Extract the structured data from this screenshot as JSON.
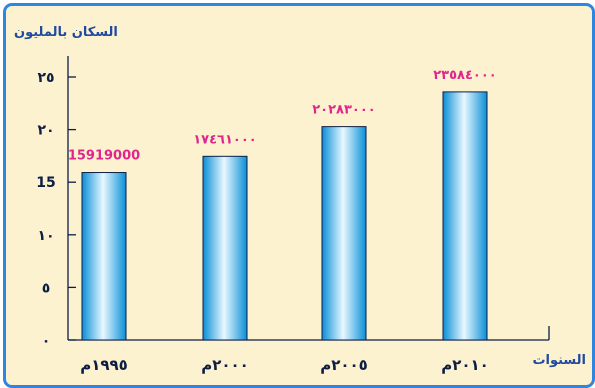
{
  "chart_data": {
    "type": "bar",
    "title": "السكان بالمليون",
    "ylabel": "السكان بالمليون",
    "xlabel": "السنوات",
    "categories": [
      "١٩٩٥م",
      "٢٠٠٠م",
      "٢٠٠٥م",
      "٢٠١٠م"
    ],
    "values": [
      15.919,
      17.461,
      20.283,
      23.584
    ],
    "data_labels": [
      "15919000",
      "١٧٤٦١٠٠٠",
      "٢٠٢٨٣٠٠٠",
      "٢٣٥٨٤٠٠٠"
    ],
    "yticks": [
      {
        "value": 0,
        "label": "٠"
      },
      {
        "value": 5,
        "label": "٥"
      },
      {
        "value": 10,
        "label": "١٠"
      },
      {
        "value": 15,
        "label": "15"
      },
      {
        "value": 20,
        "label": "٢٠"
      },
      {
        "value": 25,
        "label": "٢٥"
      }
    ],
    "ylim": [
      0,
      25
    ],
    "grid": false,
    "legend": "none",
    "colors": {
      "bar_edge": "#0a8fd8",
      "bar_center": "#e8f8ff",
      "data_label": "#e0268c",
      "axis": "#0d1e44",
      "title": "#1f4aa0",
      "background": "#fdf2d0",
      "border": "#2e86e0"
    }
  }
}
